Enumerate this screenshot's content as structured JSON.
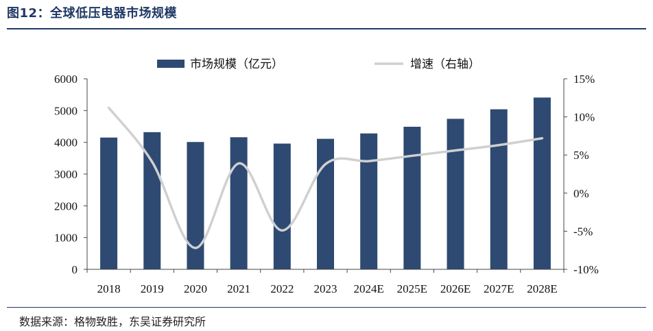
{
  "figure": {
    "title": "图12：全球低压电器市场规模",
    "source": "数据来源：格物致胜，东吴证券研究所"
  },
  "chart_data": {
    "type": "bar",
    "categories": [
      "2018",
      "2019",
      "2020",
      "2021",
      "2022",
      "2023",
      "2024E",
      "2025E",
      "2026E",
      "2027E",
      "2028E"
    ],
    "series": [
      {
        "name": "市场规模（亿元）",
        "type": "bar",
        "axis": "left",
        "color": "#2e4a72",
        "values": [
          4150,
          4320,
          4010,
          4160,
          3960,
          4110,
          4280,
          4490,
          4740,
          5040,
          5410
        ]
      },
      {
        "name": "增速（右轴）",
        "type": "line",
        "axis": "right",
        "color": "#d0d0d0",
        "values": [
          11.2,
          4.1,
          -7.2,
          3.9,
          -4.9,
          3.8,
          4.2,
          4.9,
          5.6,
          6.3,
          7.2
        ]
      }
    ],
    "y_left": {
      "ylim": [
        0,
        6000
      ],
      "ticks": [
        "0",
        "1000",
        "2000",
        "3000",
        "4000",
        "5000",
        "6000"
      ]
    },
    "y_right": {
      "ylim": [
        -10,
        15
      ],
      "ticks": [
        "-10%",
        "-5%",
        "0%",
        "5%",
        "10%",
        "15%"
      ]
    },
    "legend": "top",
    "grid": false
  }
}
